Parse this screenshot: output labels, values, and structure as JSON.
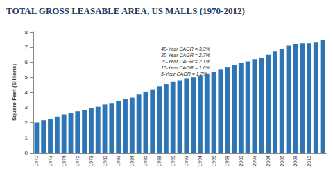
{
  "chart_data": {
    "type": "bar",
    "title": "TOTAL GROSS LEASABLE AREA, US MALLS (1970-2012)",
    "y_label": "Square Feet (Billions)",
    "annotations": [
      "40-Year CAGR = 3.3%",
      "30-Year CAGR = 2.7%",
      "20-Year CAGR = 2.1%",
      "10-Year CAGR = 1.6%",
      "5-Year CAGR = 1.2%"
    ],
    "categories": [
      "1970",
      null,
      "1972",
      null,
      "1974",
      null,
      "1976",
      null,
      "1978",
      null,
      "1980",
      null,
      "1982",
      null,
      "1984",
      null,
      "1986",
      null,
      "1988",
      null,
      "1990",
      null,
      "1992",
      null,
      "1994",
      null,
      "1996",
      null,
      "1998",
      null,
      "2000",
      null,
      "2002",
      null,
      "2004",
      null,
      "2006",
      null,
      "2008",
      null,
      "2010",
      null,
      null
    ],
    "values": [
      2.0,
      2.15,
      2.25,
      2.4,
      2.55,
      2.65,
      2.75,
      2.85,
      2.95,
      3.05,
      3.2,
      3.3,
      3.45,
      3.55,
      3.65,
      3.85,
      4.05,
      4.2,
      4.4,
      4.55,
      4.7,
      4.8,
      4.9,
      5.0,
      5.1,
      5.25,
      5.35,
      5.5,
      5.65,
      5.8,
      5.95,
      6.05,
      6.2,
      6.3,
      6.5,
      6.7,
      6.9,
      7.1,
      7.2,
      7.25,
      7.25,
      7.3,
      7.45
    ],
    "color": "#2e75b6",
    "ylim": [
      0,
      8
    ],
    "yticks": [
      0,
      1,
      2,
      3,
      4,
      5,
      6,
      7,
      8
    ],
    "grid": false
  }
}
